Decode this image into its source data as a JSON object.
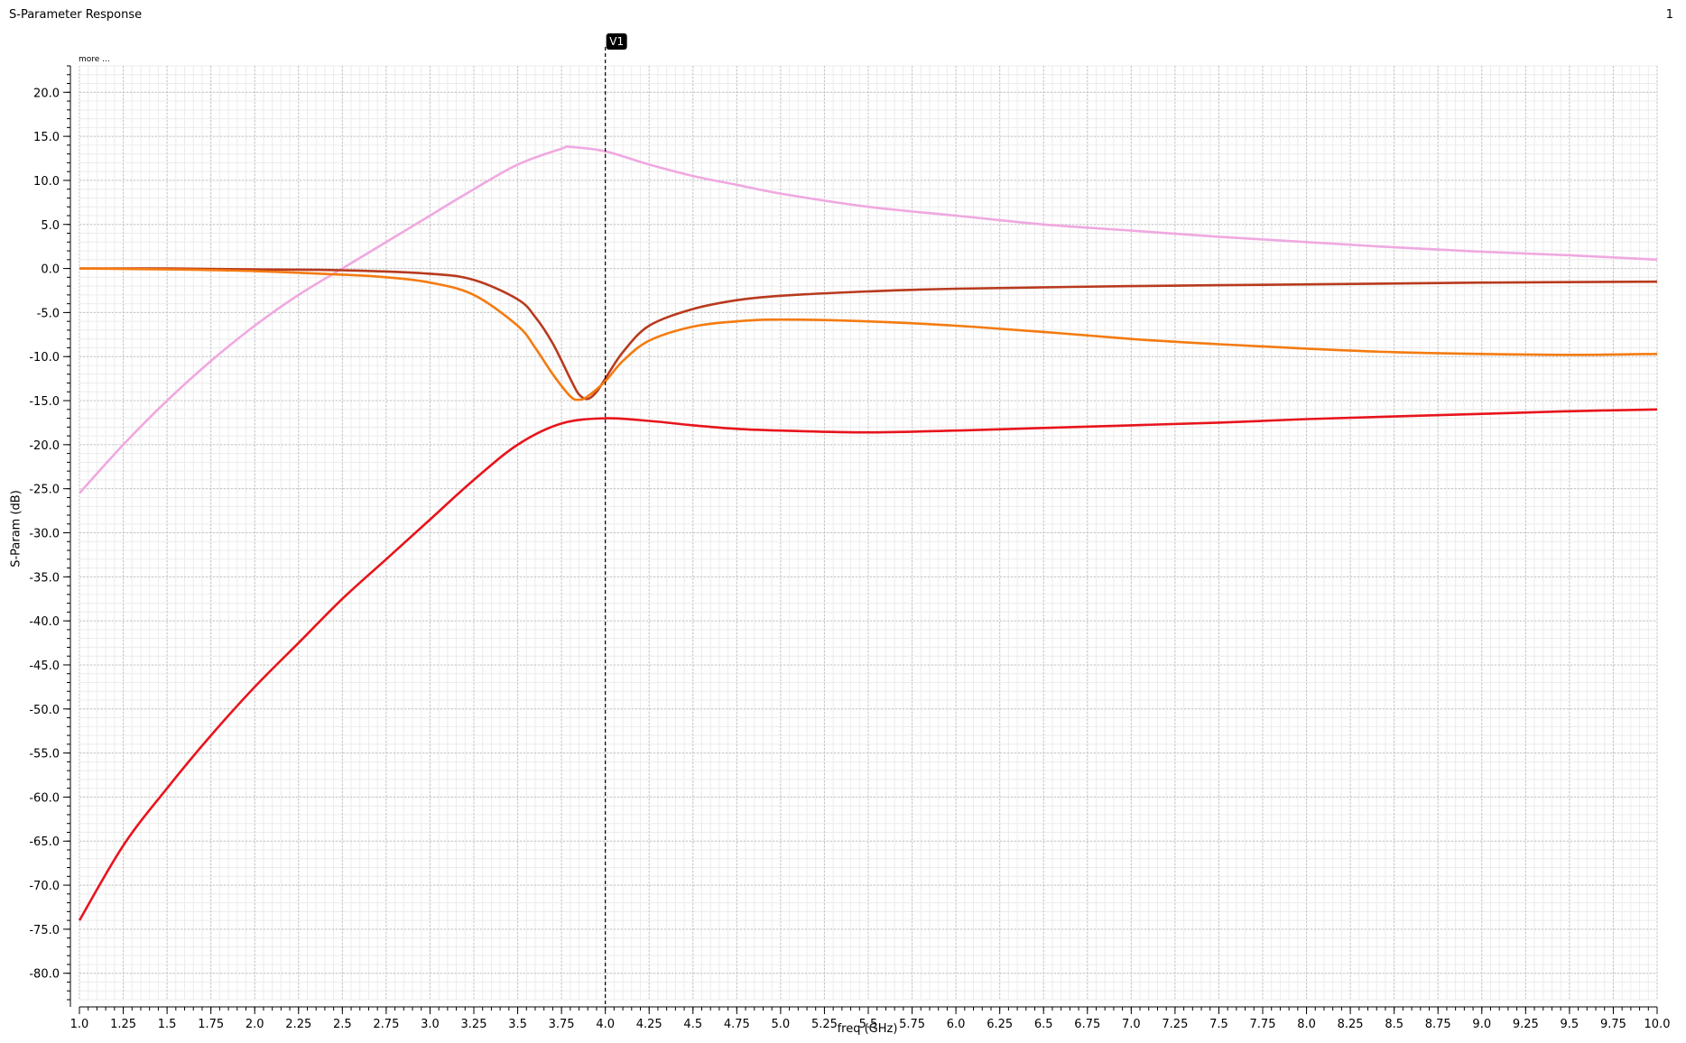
{
  "window": {
    "title": "S-Parameter Response",
    "page_number": "1"
  },
  "chart_data": {
    "type": "line",
    "xlabel": "freq (GHz)",
    "ylabel": "S-Param (dB)",
    "xlim": [
      1.0,
      10.0
    ],
    "ylim": [
      -83.0,
      23.0
    ],
    "x_ticks": [
      1.0,
      1.25,
      1.5,
      1.75,
      2.0,
      2.25,
      2.5,
      2.75,
      3.0,
      3.25,
      3.5,
      3.75,
      4.0,
      4.25,
      4.5,
      4.75,
      5.0,
      5.25,
      5.5,
      5.75,
      6.0,
      6.25,
      6.5,
      6.75,
      7.0,
      7.25,
      7.5,
      7.75,
      8.0,
      8.25,
      8.5,
      8.75,
      9.0,
      9.25,
      9.5,
      9.75,
      10.0
    ],
    "x_tick_labels": [
      "1.0",
      "1.25",
      "1.5",
      "1.75",
      "2.0",
      "2.25",
      "2.5",
      "2.75",
      "3.0",
      "3.25",
      "3.5",
      "3.75",
      "4.0",
      "4.25",
      "4.5",
      "4.75",
      "5.0",
      "5.25",
      "5.5",
      "5.75",
      "6.0",
      "6.25",
      "6.5",
      "6.75",
      "7.0",
      "7.25",
      "7.5",
      "7.75",
      "8.0",
      "8.25",
      "8.5",
      "8.75",
      "9.0",
      "9.25",
      "9.5",
      "9.75",
      "10.0"
    ],
    "y_ticks": [
      20,
      15,
      10,
      5,
      0,
      -5,
      -10,
      -15,
      -20,
      -25,
      -30,
      -35,
      -40,
      -45,
      -50,
      -55,
      -60,
      -65,
      -70,
      -75,
      -80
    ],
    "y_tick_labels": [
      "20.0",
      "15.0",
      "10.0",
      "5.0",
      "0.0",
      "-5.0",
      "-10.0",
      "-15.0",
      "-20.0",
      "-25.0",
      "-30.0",
      "-35.0",
      "-40.0",
      "-45.0",
      "-50.0",
      "-55.0",
      "-60.0",
      "-65.0",
      "-70.0",
      "-75.0",
      "-80.0"
    ],
    "grid": true,
    "legend": "more ...",
    "marker": {
      "label": "V1",
      "x": 4.0
    },
    "series": [
      {
        "color": "#f0a8e0",
        "x": [
          1.0,
          1.25,
          1.5,
          1.75,
          2.0,
          2.25,
          2.5,
          2.75,
          3.0,
          3.25,
          3.5,
          3.75,
          3.8,
          4.0,
          4.25,
          4.5,
          4.75,
          5.0,
          5.5,
          6.0,
          6.5,
          7.0,
          7.5,
          8.0,
          8.5,
          9.0,
          9.5,
          10.0
        ],
        "y": [
          -25.5,
          -20.0,
          -15.0,
          -10.5,
          -6.5,
          -3.0,
          0.0,
          3.0,
          6.0,
          9.0,
          11.8,
          13.6,
          13.8,
          13.3,
          11.8,
          10.5,
          9.5,
          8.5,
          7.0,
          6.0,
          5.0,
          4.3,
          3.6,
          3.0,
          2.4,
          1.9,
          1.5,
          1.0
        ]
      },
      {
        "color": "#b83a1e",
        "x": [
          1.0,
          1.5,
          2.0,
          2.5,
          3.0,
          3.25,
          3.5,
          3.6,
          3.7,
          3.8,
          3.85,
          3.9,
          3.95,
          4.0,
          4.1,
          4.25,
          4.5,
          4.75,
          5.0,
          5.5,
          6.0,
          7.0,
          8.0,
          9.0,
          10.0
        ],
        "y": [
          0.0,
          0.0,
          -0.1,
          -0.2,
          -0.6,
          -1.3,
          -3.5,
          -5.5,
          -8.5,
          -12.5,
          -14.3,
          -14.8,
          -14.0,
          -12.5,
          -9.5,
          -6.5,
          -4.6,
          -3.6,
          -3.1,
          -2.6,
          -2.3,
          -2.0,
          -1.8,
          -1.6,
          -1.5
        ]
      },
      {
        "color": "#f47b10",
        "x": [
          1.0,
          1.5,
          2.0,
          2.5,
          2.75,
          3.0,
          3.25,
          3.5,
          3.6,
          3.7,
          3.8,
          3.85,
          3.9,
          4.0,
          4.1,
          4.25,
          4.5,
          4.75,
          5.0,
          5.5,
          6.0,
          6.5,
          7.0,
          7.5,
          8.0,
          8.5,
          9.0,
          9.5,
          10.0
        ],
        "y": [
          0.0,
          -0.1,
          -0.3,
          -0.7,
          -1.0,
          -1.6,
          -3.0,
          -6.5,
          -9.0,
          -12.0,
          -14.5,
          -14.9,
          -14.5,
          -12.8,
          -10.5,
          -8.2,
          -6.6,
          -6.0,
          -5.8,
          -6.0,
          -6.5,
          -7.2,
          -8.0,
          -8.6,
          -9.1,
          -9.5,
          -9.7,
          -9.8,
          -9.7
        ]
      },
      {
        "color": "#e8141c",
        "x": [
          1.0,
          1.25,
          1.5,
          1.75,
          2.0,
          2.25,
          2.5,
          2.75,
          3.0,
          3.25,
          3.5,
          3.75,
          4.0,
          4.25,
          4.5,
          4.75,
          5.0,
          5.5,
          6.0,
          6.5,
          7.0,
          7.5,
          8.0,
          8.5,
          9.0,
          9.5,
          10.0
        ],
        "y": [
          -74.0,
          -65.5,
          -59.0,
          -53.0,
          -47.5,
          -42.5,
          -37.5,
          -33.0,
          -28.5,
          -24.0,
          -20.0,
          -17.6,
          -17.0,
          -17.3,
          -17.8,
          -18.2,
          -18.4,
          -18.6,
          -18.4,
          -18.1,
          -17.8,
          -17.5,
          -17.1,
          -16.8,
          -16.5,
          -16.2,
          -16.0
        ]
      }
    ]
  }
}
